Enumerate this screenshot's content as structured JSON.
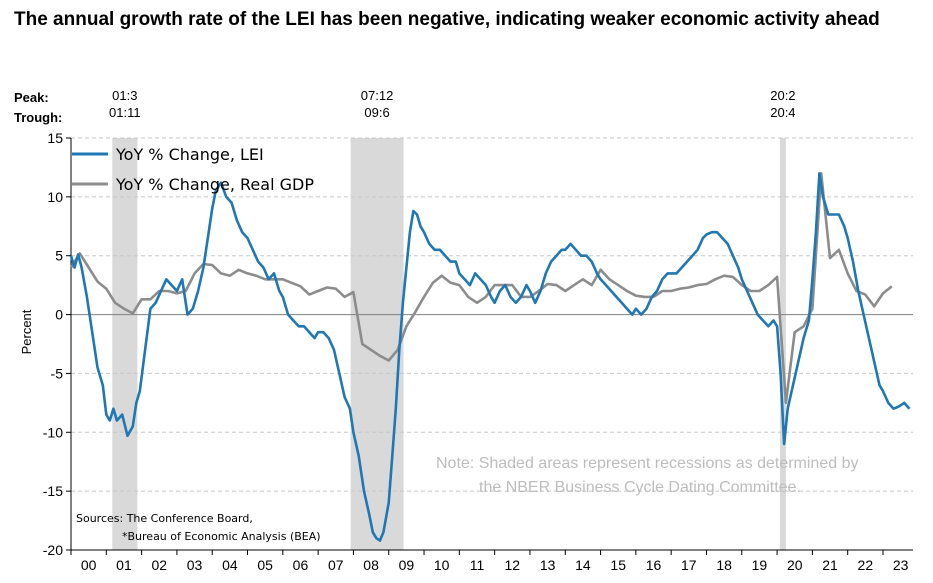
{
  "title": "The annual growth rate of the LEI has been negative, indicating weaker economic activity ahead",
  "peak_label": "Peak:",
  "trough_label": "Trough:",
  "note_line1": "Note: Shaded areas represent recessions as determined by",
  "note_line2": "the NBER Business Cycle Dating Committee.",
  "source_line1": "Sources: The Conference Board,",
  "source_line2": "*Bureau of Economic Analysis (BEA)",
  "colors": {
    "lei": "#1f77b4",
    "gdp": "#8c8c8c",
    "recession": "#d9d9d9",
    "grid": "#c8c8c8"
  },
  "chart_data": {
    "type": "line",
    "xlabel": "",
    "ylabel": "Percent",
    "xlim": [
      2000.0,
      2023.85
    ],
    "ylim": [
      -20,
      15
    ],
    "yticks": [
      15,
      10,
      5,
      0,
      -5,
      -10,
      -15,
      -20
    ],
    "xtick_labels": [
      "00",
      "01",
      "02",
      "03",
      "04",
      "05",
      "06",
      "07",
      "08",
      "09",
      "10",
      "11",
      "12",
      "13",
      "14",
      "15",
      "16",
      "17",
      "18",
      "19",
      "20",
      "21",
      "22",
      "23"
    ],
    "grid": true,
    "legend_position": "top-left",
    "recessions": [
      {
        "peak": "01:3",
        "trough": "01:11",
        "start": 2001.17,
        "end": 2001.88
      },
      {
        "peak": "07:12",
        "trough": "09:6",
        "start": 2007.92,
        "end": 2009.42
      },
      {
        "peak": "20:2",
        "trough": "20:4",
        "start": 2020.08,
        "end": 2020.25
      }
    ],
    "series": [
      {
        "name": "YoY % Change, LEI",
        "color": "#1f77b4",
        "x": [
          2000.0,
          2000.1,
          2000.2,
          2000.3,
          2000.45,
          2000.6,
          2000.75,
          2000.9,
          2001.0,
          2001.1,
          2001.2,
          2001.3,
          2001.45,
          2001.6,
          2001.75,
          2001.85,
          2001.95,
          2002.1,
          2002.25,
          2002.4,
          2002.55,
          2002.7,
          2002.85,
          2003.0,
          2003.15,
          2003.3,
          2003.45,
          2003.6,
          2003.75,
          2003.9,
          2004.0,
          2004.1,
          2004.25,
          2004.4,
          2004.55,
          2004.7,
          2004.85,
          2005.0,
          2005.15,
          2005.3,
          2005.45,
          2005.6,
          2005.75,
          2005.9,
          2006.0,
          2006.15,
          2006.3,
          2006.45,
          2006.6,
          2006.75,
          2006.9,
          2007.0,
          2007.15,
          2007.3,
          2007.45,
          2007.6,
          2007.75,
          2007.9,
          2008.0,
          2008.15,
          2008.3,
          2008.45,
          2008.55,
          2008.65,
          2008.75,
          2008.85,
          2009.0,
          2009.1,
          2009.2,
          2009.3,
          2009.4,
          2009.5,
          2009.6,
          2009.7,
          2009.8,
          2009.9,
          2010.0,
          2010.15,
          2010.3,
          2010.45,
          2010.6,
          2010.75,
          2010.9,
          2011.0,
          2011.15,
          2011.3,
          2011.45,
          2011.6,
          2011.75,
          2011.9,
          2012.0,
          2012.15,
          2012.3,
          2012.45,
          2012.6,
          2012.75,
          2012.9,
          2013.0,
          2013.15,
          2013.3,
          2013.45,
          2013.6,
          2013.75,
          2013.9,
          2014.0,
          2014.15,
          2014.3,
          2014.45,
          2014.6,
          2014.75,
          2014.9,
          2015.0,
          2015.15,
          2015.3,
          2015.45,
          2015.6,
          2015.75,
          2015.9,
          2016.0,
          2016.15,
          2016.3,
          2016.45,
          2016.6,
          2016.75,
          2016.9,
          2017.0,
          2017.15,
          2017.3,
          2017.45,
          2017.6,
          2017.75,
          2017.9,
          2018.0,
          2018.15,
          2018.3,
          2018.45,
          2018.6,
          2018.75,
          2018.9,
          2019.0,
          2019.15,
          2019.3,
          2019.45,
          2019.6,
          2019.75,
          2019.9,
          2020.0,
          2020.1,
          2020.2,
          2020.3,
          2020.45,
          2020.6,
          2020.75,
          2020.9,
          2021.0,
          2021.1,
          2021.2,
          2021.3,
          2021.45,
          2021.6,
          2021.75,
          2021.9,
          2022.0,
          2022.15,
          2022.3,
          2022.45,
          2022.6,
          2022.75,
          2022.9,
          2023.0,
          2023.15,
          2023.3,
          2023.45,
          2023.6,
          2023.75
        ],
        "values": [
          5.0,
          4.0,
          5.1,
          4.0,
          1.5,
          -1.5,
          -4.5,
          -6.0,
          -8.5,
          -9.0,
          -8.0,
          -9.0,
          -8.5,
          -10.3,
          -9.5,
          -7.5,
          -6.5,
          -3.0,
          0.5,
          1.0,
          2.0,
          3.0,
          2.5,
          2.0,
          3.0,
          0.0,
          0.5,
          2.0,
          4.0,
          7.0,
          9.0,
          10.5,
          11.2,
          10.0,
          9.5,
          8.0,
          7.0,
          6.5,
          5.5,
          4.5,
          4.0,
          3.0,
          3.5,
          2.0,
          1.5,
          0.0,
          -0.5,
          -1.0,
          -1.0,
          -1.5,
          -2.0,
          -1.5,
          -1.5,
          -2.0,
          -3.0,
          -5.0,
          -7.0,
          -8.0,
          -10.0,
          -12.0,
          -15.0,
          -17.0,
          -18.5,
          -19.0,
          -19.2,
          -18.5,
          -16.0,
          -12.0,
          -8.0,
          -3.0,
          1.0,
          4.0,
          7.0,
          8.8,
          8.5,
          7.5,
          7.0,
          6.0,
          5.5,
          5.5,
          5.0,
          4.5,
          4.5,
          3.5,
          3.0,
          2.5,
          3.5,
          3.0,
          2.5,
          1.5,
          1.0,
          2.0,
          2.5,
          1.5,
          1.0,
          1.5,
          2.5,
          2.0,
          1.0,
          2.0,
          3.5,
          4.5,
          5.0,
          5.5,
          5.5,
          6.0,
          5.5,
          5.0,
          5.0,
          4.5,
          3.5,
          3.0,
          2.5,
          2.0,
          1.5,
          1.0,
          0.5,
          0.0,
          0.5,
          0.0,
          0.5,
          1.5,
          2.0,
          3.0,
          3.5,
          3.5,
          3.5,
          4.0,
          4.5,
          5.0,
          5.5,
          6.5,
          6.8,
          7.0,
          7.0,
          6.5,
          6.0,
          5.0,
          4.0,
          3.0,
          2.0,
          1.0,
          0.0,
          -0.5,
          -1.0,
          -0.5,
          -1.0,
          -5.0,
          -11.0,
          -8.0,
          -6.0,
          -4.0,
          -2.0,
          -0.5,
          3.0,
          7.0,
          12.0,
          10.0,
          8.5,
          8.5,
          8.5,
          7.5,
          6.5,
          4.5,
          2.0,
          0.0,
          -2.0,
          -4.0,
          -6.0,
          -6.5,
          -7.5,
          -8.0,
          -7.8,
          -7.5,
          -8.0
        ]
      },
      {
        "name": "YoY % Change, Real GDP",
        "color": "#8c8c8c",
        "x": [
          2000.0,
          2000.25,
          2000.5,
          2000.75,
          2001.0,
          2001.25,
          2001.5,
          2001.75,
          2002.0,
          2002.25,
          2002.5,
          2002.75,
          2003.0,
          2003.25,
          2003.5,
          2003.75,
          2004.0,
          2004.25,
          2004.5,
          2004.75,
          2005.0,
          2005.25,
          2005.5,
          2005.75,
          2006.0,
          2006.25,
          2006.5,
          2006.75,
          2007.0,
          2007.25,
          2007.5,
          2007.75,
          2008.0,
          2008.25,
          2008.5,
          2008.75,
          2009.0,
          2009.25,
          2009.5,
          2009.75,
          2010.0,
          2010.25,
          2010.5,
          2010.75,
          2011.0,
          2011.25,
          2011.5,
          2011.75,
          2012.0,
          2012.25,
          2012.5,
          2012.75,
          2013.0,
          2013.25,
          2013.5,
          2013.75,
          2014.0,
          2014.25,
          2014.5,
          2014.75,
          2015.0,
          2015.25,
          2015.5,
          2015.75,
          2016.0,
          2016.25,
          2016.5,
          2016.75,
          2017.0,
          2017.25,
          2017.5,
          2017.75,
          2018.0,
          2018.25,
          2018.5,
          2018.75,
          2019.0,
          2019.25,
          2019.5,
          2019.75,
          2020.0,
          2020.25,
          2020.5,
          2020.75,
          2021.0,
          2021.25,
          2021.5,
          2021.75,
          2022.0,
          2022.25,
          2022.5,
          2022.75,
          2023.0,
          2023.25
        ],
        "values": [
          4.0,
          5.2,
          4.0,
          2.8,
          2.2,
          1.0,
          0.5,
          0.1,
          1.3,
          1.3,
          2.0,
          2.0,
          1.8,
          2.0,
          3.5,
          4.3,
          4.2,
          3.5,
          3.3,
          3.8,
          3.5,
          3.3,
          3.0,
          3.0,
          3.0,
          2.7,
          2.4,
          1.7,
          2.0,
          2.3,
          2.2,
          1.5,
          1.9,
          -2.5,
          -3.0,
          -3.5,
          -3.9,
          -3.0,
          -1.0,
          0.2,
          1.5,
          2.7,
          3.3,
          2.7,
          2.5,
          1.5,
          1.0,
          1.5,
          2.5,
          2.5,
          2.5,
          1.5,
          1.5,
          2.0,
          2.6,
          2.5,
          2.0,
          2.5,
          3.0,
          2.5,
          3.8,
          3.0,
          2.5,
          2.0,
          1.6,
          1.5,
          1.5,
          2.0,
          2.0,
          2.2,
          2.3,
          2.5,
          2.6,
          3.0,
          3.3,
          3.2,
          2.5,
          2.0,
          2.0,
          2.5,
          3.2,
          -7.5,
          -1.5,
          -1.0,
          0.5,
          12.0,
          4.8,
          5.5,
          3.5,
          2.0,
          1.7,
          0.7,
          1.8,
          2.4
        ]
      }
    ]
  }
}
